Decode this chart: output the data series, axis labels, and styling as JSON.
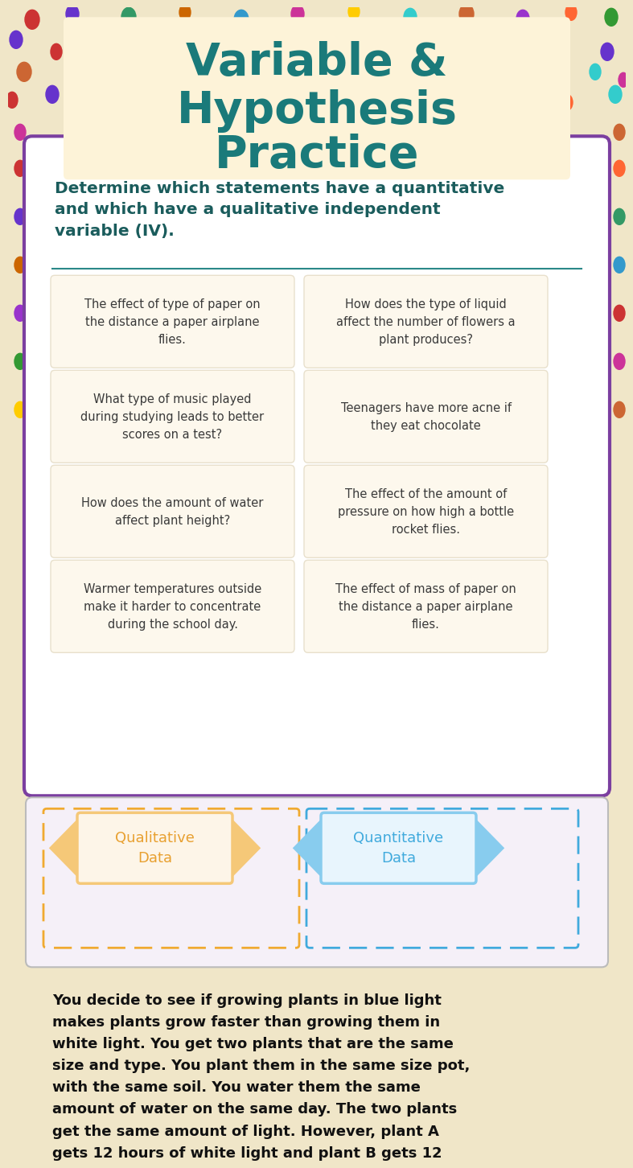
{
  "title_line1": "Variable &",
  "title_line2": "Hypothesis",
  "title_line3": "Practice",
  "title_color": "#1a7a7a",
  "bg_color": "#f0e6c8",
  "dots": [
    [
      30,
      15,
      "#cc3333",
      18,
      24
    ],
    [
      80,
      8,
      "#6633cc",
      16,
      22
    ],
    [
      150,
      12,
      "#339966",
      18,
      24
    ],
    [
      220,
      6,
      "#cc6600",
      14,
      20
    ],
    [
      290,
      15,
      "#3399cc",
      18,
      24
    ],
    [
      360,
      8,
      "#cc3399",
      16,
      22
    ],
    [
      430,
      5,
      "#ffcc00",
      14,
      20
    ],
    [
      500,
      12,
      "#33cccc",
      16,
      22
    ],
    [
      570,
      8,
      "#cc6633",
      18,
      24
    ],
    [
      640,
      14,
      "#9933cc",
      16,
      22
    ],
    [
      700,
      6,
      "#ff6633",
      14,
      20
    ],
    [
      750,
      12,
      "#339933",
      16,
      22
    ],
    [
      10,
      40,
      "#6633cc",
      16,
      22
    ],
    [
      60,
      55,
      "#cc3333",
      14,
      20
    ],
    [
      120,
      45,
      "#ffcc00",
      18,
      24
    ],
    [
      190,
      58,
      "#3399cc",
      14,
      20
    ],
    [
      260,
      42,
      "#cc3399",
      16,
      22
    ],
    [
      330,
      55,
      "#339966",
      18,
      24
    ],
    [
      400,
      42,
      "#cc6600",
      16,
      22
    ],
    [
      470,
      55,
      "#9933cc",
      14,
      20
    ],
    [
      540,
      45,
      "#ff6633",
      16,
      22
    ],
    [
      610,
      58,
      "#33cccc",
      18,
      24
    ],
    [
      680,
      42,
      "#cc3333",
      14,
      20
    ],
    [
      745,
      55,
      "#6633cc",
      16,
      22
    ],
    [
      20,
      80,
      "#cc6633",
      18,
      24
    ],
    [
      90,
      90,
      "#339933",
      14,
      20
    ],
    [
      160,
      78,
      "#cc3399",
      16,
      22
    ],
    [
      240,
      92,
      "#3399cc",
      18,
      24
    ],
    [
      310,
      82,
      "#ffcc00",
      14,
      20
    ],
    [
      380,
      95,
      "#cc3333",
      16,
      22
    ],
    [
      450,
      80,
      "#9933cc",
      18,
      24
    ],
    [
      520,
      92,
      "#cc6600",
      14,
      20
    ],
    [
      590,
      82,
      "#339966",
      16,
      22
    ],
    [
      660,
      95,
      "#ff6633",
      18,
      24
    ],
    [
      730,
      80,
      "#33cccc",
      14,
      20
    ],
    [
      765,
      90,
      "#cc3399",
      12,
      18
    ],
    [
      5,
      115,
      "#cc3333",
      14,
      20
    ],
    [
      55,
      108,
      "#6633cc",
      16,
      22
    ],
    [
      130,
      122,
      "#ffcc00",
      14,
      20
    ],
    [
      200,
      110,
      "#339966",
      18,
      24
    ],
    [
      275,
      118,
      "#cc6633",
      14,
      20
    ],
    [
      345,
      108,
      "#3399cc",
      16,
      22
    ],
    [
      415,
      122,
      "#cc3399",
      18,
      24
    ],
    [
      485,
      110,
      "#339933",
      14,
      20
    ],
    [
      555,
      120,
      "#cc6600",
      16,
      22
    ],
    [
      625,
      108,
      "#9933cc",
      18,
      24
    ],
    [
      695,
      118,
      "#ff6633",
      14,
      20
    ],
    [
      755,
      108,
      "#33cccc",
      16,
      22
    ],
    [
      15,
      155,
      "#cc3399",
      14,
      20
    ],
    [
      760,
      155,
      "#cc6633",
      14,
      20
    ],
    [
      15,
      200,
      "#cc3333",
      14,
      20
    ],
    [
      760,
      200,
      "#ff6633",
      14,
      20
    ],
    [
      15,
      260,
      "#6633cc",
      14,
      20
    ],
    [
      760,
      260,
      "#339966",
      14,
      20
    ],
    [
      15,
      320,
      "#cc6600",
      14,
      20
    ],
    [
      760,
      320,
      "#3399cc",
      14,
      20
    ],
    [
      15,
      380,
      "#9933cc",
      14,
      20
    ],
    [
      760,
      380,
      "#cc3333",
      14,
      20
    ],
    [
      15,
      440,
      "#339933",
      14,
      20
    ],
    [
      760,
      440,
      "#cc3399",
      14,
      20
    ],
    [
      15,
      500,
      "#ffcc00",
      14,
      20
    ],
    [
      760,
      500,
      "#cc6633",
      14,
      20
    ]
  ],
  "section_bg": "#ffffff",
  "section_border": "#7b3fa0",
  "section_title_color": "#1a5c5c",
  "card_bg": "#fdf8ed",
  "card_text_color": "#3a3a3a",
  "card_border": "#e8e0cc",
  "cards": [
    "The effect of type of paper on\nthe distance a paper airplane\nflies.",
    "How does the type of liquid\naffect the number of flowers a\nplant produces?",
    "What type of music played\nduring studying leads to better\nscores on a test?",
    "Teenagers have more acne if\nthey eat chocolate",
    "How does the amount of water\naffect plant height?",
    "The effect of the amount of\npressure on how high a bottle\nrocket flies.",
    "Warmer temperatures outside\nmake it harder to concentrate\nduring the school day.",
    "The effect of mass of paper on\nthe distance a paper airplane\nflies."
  ],
  "sort_bg": "#f5f0f8",
  "sort_border": "#bbbbbb",
  "qual_label": "Qualitative\nData",
  "quant_label": "Quantitative\nData",
  "qual_text_color": "#e8a030",
  "quant_text_color": "#40aadd",
  "qual_banner_color": "#f5c878",
  "quant_banner_color": "#88ccee",
  "qual_banner_bg": "#fdf5e8",
  "quant_banner_bg": "#e8f5fd",
  "qual_dash_color": "#f0aa30",
  "quant_dash_color": "#40aadd",
  "bottom_text_color": "#111111",
  "bottom_text": "You decide to see if growing plants in blue light\nmakes plants grow faster than growing them in\nwhite light. You get two plants that are the same\nsize and type. You plant them in the same size pot,\nwith the same soil. You water them the same\namount of water on the same day. The two plants\nget the same amount of light. However, plant A\ngets 12 hours of white light and plant B gets 12"
}
